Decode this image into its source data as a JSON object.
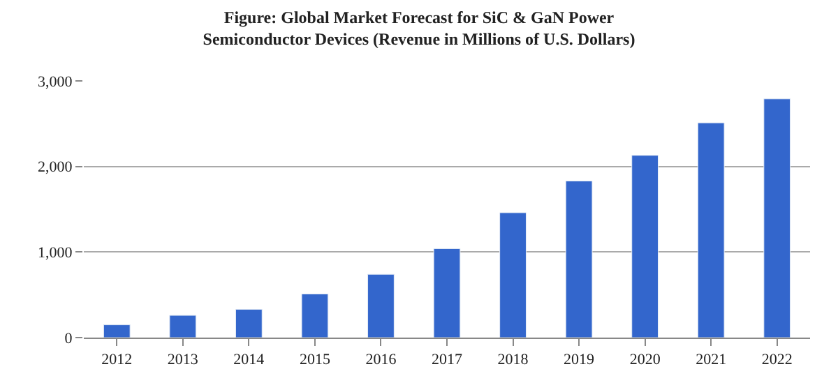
{
  "chart_data": {
    "type": "bar",
    "title": "Figure: Global Market Forecast for SiC & GaN Power Semiconductor Devices (Revenue in Millions of U.S. Dollars)",
    "categories": [
      "2012",
      "2013",
      "2014",
      "2015",
      "2016",
      "2017",
      "2018",
      "2019",
      "2020",
      "2021",
      "2022"
    ],
    "values": [
      150,
      260,
      330,
      510,
      740,
      1040,
      1460,
      1830,
      2130,
      2510,
      2790
    ],
    "color": "#3366cc",
    "ylim": [
      0,
      3000
    ],
    "yticks": [
      0,
      {
        "value": 1000,
        "label": "1,000"
      },
      {
        "value": 2000,
        "label": "2,000"
      },
      {
        "value": 3000,
        "label": "3,000"
      }
    ],
    "grid": "y"
  }
}
